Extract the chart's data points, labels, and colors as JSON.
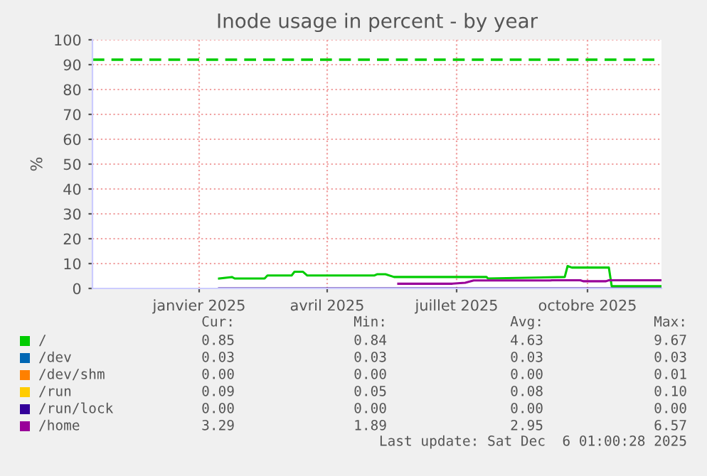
{
  "chart_data": {
    "type": "line",
    "title": "Inode usage in percent - by year",
    "ylabel": "%",
    "xlim": [
      "2024-11-01",
      "2025-12-06"
    ],
    "xticks": [
      {
        "value": "2025-01-15",
        "label": "janvier 2025"
      },
      {
        "value": "2025-04-15",
        "label": "avril 2025"
      },
      {
        "value": "2025-07-15",
        "label": "juillet 2025"
      },
      {
        "value": "2025-10-15",
        "label": "octobre 2025"
      }
    ],
    "ylim": [
      0,
      100
    ],
    "yticks": [
      0,
      10,
      20,
      30,
      40,
      50,
      60,
      70,
      80,
      90,
      100
    ],
    "grid": true,
    "legend": "bottom",
    "marker": "none",
    "line_style": "solid",
    "series": [
      {
        "name": "/",
        "color": "#00cc00",
        "x": [
          "2025-01-29",
          "2025-02-07",
          "2025-02-09",
          "2025-03-02",
          "2025-03-04",
          "2025-03-21",
          "2025-03-23",
          "2025-03-29",
          "2025-04-01",
          "2025-05-18",
          "2025-05-20",
          "2025-05-26",
          "2025-06-01",
          "2025-08-05",
          "2025-08-06",
          "2025-09-29",
          "2025-10-01",
          "2025-10-04",
          "2025-10-30",
          "2025-11-01",
          "2025-12-06"
        ],
        "values": [
          4.0,
          4.6,
          4.0,
          4.0,
          5.2,
          5.2,
          6.7,
          6.7,
          5.2,
          5.2,
          5.7,
          5.7,
          4.6,
          4.6,
          4.0,
          4.6,
          9.0,
          8.4,
          8.4,
          0.9,
          0.9
        ]
      },
      {
        "name": "/dev",
        "color": "#0066b3"
      },
      {
        "name": "/dev/shm",
        "color": "#ff8000"
      },
      {
        "name": "/run",
        "color": "#ffcc00"
      },
      {
        "name": "/run/lock",
        "color": "#330099",
        "x": [
          "2025-01-29",
          "2025-12-06"
        ],
        "values": [
          0.0,
          0.0
        ]
      },
      {
        "name": "/home",
        "color": "#990099",
        "x": [
          "2025-06-04",
          "2025-07-12",
          "2025-07-21",
          "2025-07-27",
          "2025-09-19",
          "2025-09-20",
          "2025-10-10",
          "2025-10-12",
          "2025-10-28",
          "2025-10-30",
          "2025-12-06"
        ],
        "values": [
          1.9,
          1.9,
          2.3,
          3.2,
          3.2,
          3.3,
          3.3,
          2.9,
          2.9,
          3.3,
          3.3
        ]
      }
    ],
    "ref_lines": [
      {
        "axis": "y",
        "value": 92,
        "color": "#00cc00",
        "line_style": "dashed"
      }
    ],
    "annotations": [
      "Cur:",
      "Min:",
      "Avg:",
      "Max:",
      "0.85",
      "0.84",
      "4.63",
      "9.67",
      "0.03",
      "0.03",
      "0.03",
      "0.03",
      "0.00",
      "0.00",
      "0.00",
      "0.01",
      "0.09",
      "0.05",
      "0.08",
      "0.10",
      "0.00",
      "0.00",
      "0.00",
      "0.00",
      "3.29",
      "1.89",
      "2.95",
      "6.57",
      "Last update: Sat Dec  6 01:00:28 2025"
    ]
  }
}
